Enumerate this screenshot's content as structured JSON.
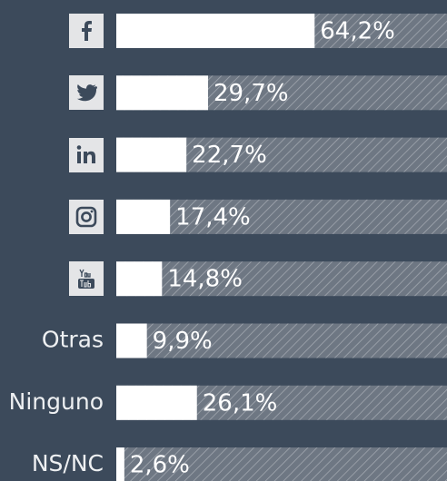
{
  "chart_data": {
    "type": "bar",
    "orientation": "horizontal",
    "categories": [
      null,
      null,
      null,
      null,
      null,
      "Otras",
      "Ninguno",
      "NS/NC"
    ],
    "values": [
      64.2,
      29.7,
      22.7,
      17.4,
      14.8,
      9.9,
      26.1,
      2.6
    ],
    "value_labels": [
      "64,2%",
      "29,7%",
      "22,7%",
      "17,4%",
      "14,8%",
      "9,9%",
      "26,1%",
      "2,6%"
    ],
    "color": "#ffffff"
  }
}
